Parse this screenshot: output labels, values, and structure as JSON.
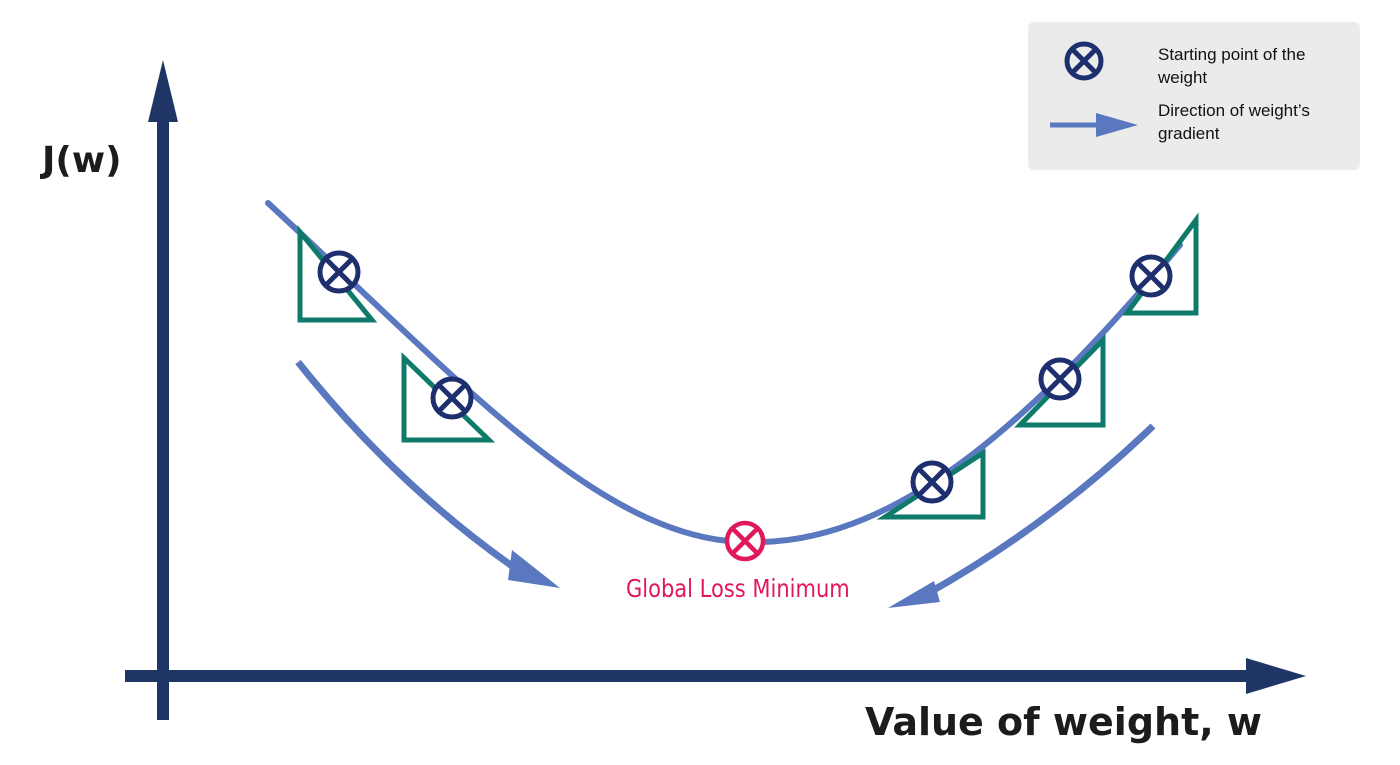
{
  "axes": {
    "y_label": "J(w)",
    "x_label": "Value of weight, w"
  },
  "minimum": {
    "label": "Global Loss Minimum",
    "color": "#e0185c"
  },
  "legend": {
    "start_label": "Starting point of the weight",
    "direction_label": "Direction of weight’s gradient"
  },
  "colors": {
    "axis": "#1e3566",
    "curve": "#5a78c0",
    "triangle": "#0e7a6a",
    "marker": "#1e2f6e",
    "legend_bg": "#ebebeb"
  },
  "icons": {
    "start_marker": "circled-x-icon",
    "direction_arrow": "arrow-right-icon"
  }
}
